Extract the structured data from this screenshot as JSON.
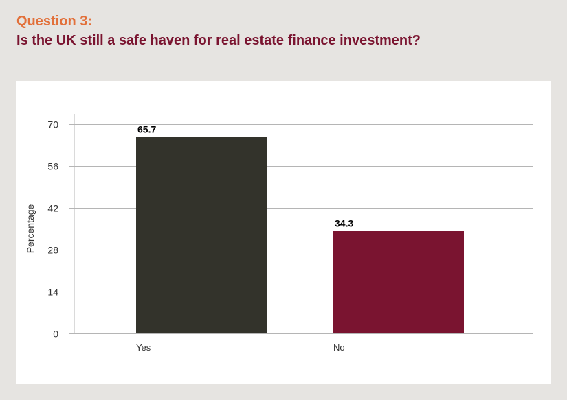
{
  "header": {
    "question_number": "Question 3:",
    "question_text": "Is the UK still a safe haven for real estate finance investment?"
  },
  "chart_data": {
    "type": "bar",
    "categories": [
      "Yes",
      "No"
    ],
    "values": [
      65.7,
      34.3
    ],
    "data_labels": [
      "65.7",
      "34.3"
    ],
    "colors": [
      "#33332b",
      "#7a1430"
    ],
    "xlabel": "",
    "ylabel": "Percentage",
    "ylim": [
      0,
      70
    ],
    "yticks": [
      0,
      14,
      28,
      42,
      56,
      70
    ],
    "grid": true
  },
  "colors": {
    "background": "#e6e4e1",
    "panel": "#ffffff",
    "question_number": "#e2703a",
    "question_text": "#7a1430",
    "gridline": "#b5b5b5"
  }
}
